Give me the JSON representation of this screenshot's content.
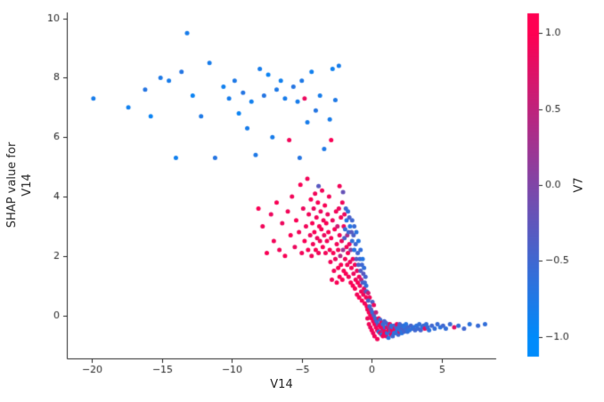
{
  "figure": {
    "xlabel": "V14",
    "ylabel_line1": "SHAP value for",
    "ylabel_line2": "V14",
    "colorbar_label": "V7",
    "text_color": "#262626",
    "spine_color": "#262626",
    "background_color": "#ffffff"
  },
  "chart_data": {
    "type": "scatter",
    "title": "",
    "xlabel": "V14",
    "ylabel": "SHAP value for V14",
    "xlim": [
      -21.8,
      8.9
    ],
    "ylim": [
      -1.45,
      10.2
    ],
    "grid": false,
    "x_ticks": [
      {
        "value": -20,
        "label": "−20"
      },
      {
        "value": -15,
        "label": "−15"
      },
      {
        "value": -10,
        "label": "−10"
      },
      {
        "value": -5,
        "label": "−5"
      },
      {
        "value": 0,
        "label": "0"
      },
      {
        "value": 5,
        "label": "5"
      }
    ],
    "y_ticks": [
      {
        "value": 0,
        "label": "0"
      },
      {
        "value": 2,
        "label": "2"
      },
      {
        "value": 4,
        "label": "4"
      },
      {
        "value": 6,
        "label": "6"
      },
      {
        "value": 8,
        "label": "8"
      },
      {
        "value": 10,
        "label": "10"
      }
    ],
    "colorbar": {
      "label": "V7",
      "position": "right",
      "vmin": -1.13,
      "vmax": 1.13,
      "color_low": "#008bfb",
      "color_high": "#ff0052",
      "ticks": [
        {
          "value": 1.0,
          "label": "1.0"
        },
        {
          "value": 0.5,
          "label": "0.5"
        },
        {
          "value": 0.0,
          "label": "0.0"
        },
        {
          "value": -0.5,
          "label": "−0.5"
        },
        {
          "value": -1.0,
          "label": "−1.0"
        }
      ]
    },
    "points": [
      [
        -19.9,
        7.3,
        -0.8
      ],
      [
        -17.4,
        7.0,
        -0.85
      ],
      [
        -16.2,
        7.6,
        -0.7
      ],
      [
        -15.8,
        6.7,
        -0.9
      ],
      [
        -15.1,
        8.0,
        -0.75
      ],
      [
        -14.5,
        7.9,
        -0.8
      ],
      [
        -14.0,
        5.3,
        -0.85
      ],
      [
        -13.6,
        8.2,
        -0.7
      ],
      [
        -13.2,
        9.5,
        -0.8
      ],
      [
        -12.8,
        7.4,
        -0.9
      ],
      [
        -12.2,
        6.7,
        -0.75
      ],
      [
        -11.6,
        8.5,
        -0.8
      ],
      [
        -11.2,
        5.3,
        -0.7
      ],
      [
        -10.6,
        7.7,
        -0.85
      ],
      [
        -10.2,
        7.3,
        -0.8
      ],
      [
        -9.8,
        7.9,
        -0.75
      ],
      [
        -9.5,
        6.8,
        -0.9
      ],
      [
        -9.2,
        7.5,
        -0.7
      ],
      [
        -8.9,
        6.3,
        -0.8
      ],
      [
        -8.6,
        7.2,
        -0.85
      ],
      [
        -8.3,
        5.4,
        -0.75
      ],
      [
        -8.0,
        8.3,
        -0.8
      ],
      [
        -7.7,
        7.4,
        -0.7
      ],
      [
        -7.4,
        8.1,
        -0.9
      ],
      [
        -7.1,
        6.0,
        -0.8
      ],
      [
        -6.8,
        7.6,
        -0.75
      ],
      [
        -6.5,
        7.9,
        -0.85
      ],
      [
        -6.2,
        7.3,
        -0.8
      ],
      [
        -5.9,
        5.9,
        0.9
      ],
      [
        -5.6,
        7.7,
        -0.7
      ],
      [
        -5.3,
        7.2,
        -0.8
      ],
      [
        -5.15,
        5.3,
        -0.7
      ],
      [
        -5.0,
        7.9,
        -0.75
      ],
      [
        -4.8,
        7.3,
        0.85
      ],
      [
        -4.6,
        6.5,
        -0.8
      ],
      [
        -4.3,
        8.2,
        -0.85
      ],
      [
        -4.0,
        6.9,
        -0.7
      ],
      [
        -3.7,
        7.4,
        -0.8
      ],
      [
        -3.4,
        5.6,
        -0.75
      ],
      [
        -3.0,
        6.6,
        -0.8
      ],
      [
        -2.9,
        5.9,
        0.95
      ],
      [
        -2.8,
        8.3,
        -0.85
      ],
      [
        -2.35,
        8.4,
        -0.8
      ],
      [
        -2.6,
        7.25,
        -0.75
      ],
      [
        -8.1,
        3.6,
        0.95
      ],
      [
        -7.8,
        3.0,
        0.9
      ],
      [
        -7.5,
        2.1,
        0.95
      ],
      [
        -7.2,
        3.4,
        0.85
      ],
      [
        -7.0,
        2.5,
        0.9
      ],
      [
        -6.8,
        3.8,
        0.95
      ],
      [
        -6.6,
        2.2,
        0.9
      ],
      [
        -6.4,
        3.1,
        0.85
      ],
      [
        -6.2,
        2.0,
        0.95
      ],
      [
        -6.0,
        3.5,
        0.9
      ],
      [
        -5.8,
        2.7,
        0.95
      ],
      [
        -5.7,
        4.0,
        0.9
      ],
      [
        -5.5,
        2.3,
        0.85
      ],
      [
        -5.4,
        3.2,
        0.95
      ],
      [
        -5.2,
        2.8,
        0.9
      ],
      [
        -5.1,
        4.4,
        0.95
      ],
      [
        -5.0,
        2.1,
        0.9
      ],
      [
        -4.9,
        3.6,
        0.85
      ],
      [
        -4.8,
        2.5,
        0.95
      ],
      [
        -4.7,
        3.0,
        0.9
      ],
      [
        -4.6,
        4.6,
        0.9
      ],
      [
        -4.55,
        2.2,
        0.95
      ],
      [
        -4.5,
        3.4,
        0.9
      ],
      [
        -4.4,
        2.7,
        0.85
      ],
      [
        -4.35,
        3.9,
        0.95
      ],
      [
        -4.3,
        2.0,
        0.9
      ],
      [
        -4.25,
        3.1,
        0.95
      ],
      [
        -4.2,
        2.4,
        0.9
      ],
      [
        -4.15,
        3.6,
        0.85
      ],
      [
        -4.1,
        2.8,
        0.95
      ],
      [
        -4.05,
        4.1,
        0.9
      ],
      [
        -4.0,
        2.2,
        0.95
      ],
      [
        -3.95,
        3.3,
        0.9
      ],
      [
        -3.9,
        2.6,
        0.85
      ],
      [
        -3.85,
        3.8,
        0.95
      ],
      [
        -3.8,
        4.35,
        -0.3
      ],
      [
        -3.8,
        2.1,
        0.9
      ],
      [
        -3.75,
        3.0,
        0.95
      ],
      [
        -3.7,
        2.5,
        0.9
      ],
      [
        -3.65,
        3.5,
        0.85
      ],
      [
        -3.6,
        2.9,
        0.95
      ],
      [
        -3.55,
        4.2,
        0.9
      ],
      [
        -3.5,
        2.3,
        0.95
      ],
      [
        -3.45,
        3.2,
        0.9
      ],
      [
        -3.4,
        2.7,
        0.85
      ],
      [
        -3.35,
        3.7,
        0.95
      ],
      [
        -3.3,
        2.1,
        0.9
      ],
      [
        -3.25,
        3.1,
        0.95
      ],
      [
        -3.2,
        2.5,
        0.9
      ],
      [
        -3.15,
        3.4,
        0.85
      ],
      [
        -3.1,
        2.8,
        0.95
      ],
      [
        -3.05,
        4.0,
        0.9
      ],
      [
        -3.0,
        2.2,
        0.95
      ],
      [
        -2.3,
        4.35,
        0.9
      ],
      [
        -2.05,
        4.15,
        -0.2
      ],
      [
        -2.95,
        1.8,
        0.9
      ],
      [
        -2.9,
        2.6,
        0.95
      ],
      [
        -2.85,
        1.2,
        0.9
      ],
      [
        -2.8,
        3.2,
        0.85
      ],
      [
        -2.75,
        2.1,
        0.95
      ],
      [
        -2.7,
        1.5,
        0.9
      ],
      [
        -2.65,
        2.9,
        0.95
      ],
      [
        -2.6,
        1.9,
        0.85
      ],
      [
        -2.55,
        3.5,
        0.9
      ],
      [
        -2.5,
        1.1,
        0.95
      ],
      [
        -2.5,
        2.4,
        0.9
      ],
      [
        -2.45,
        3.0,
        0.6
      ],
      [
        -2.4,
        1.6,
        0.95
      ],
      [
        -2.4,
        2.2,
        0.9
      ],
      [
        -2.35,
        3.6,
        0.85
      ],
      [
        -2.3,
        1.3,
        0.95
      ],
      [
        -2.3,
        2.7,
        0.9
      ],
      [
        -2.25,
        2.0,
        0.4
      ],
      [
        -2.2,
        3.3,
        0.9
      ],
      [
        -2.2,
        1.7,
        0.95
      ],
      [
        -2.15,
        2.5,
        0.85
      ],
      [
        -2.1,
        3.8,
        0.9
      ],
      [
        -2.1,
        1.2,
        0.95
      ],
      [
        -2.05,
        2.2,
        0.2
      ],
      [
        -2.0,
        3.0,
        0.9
      ],
      [
        -2.0,
        1.5,
        0.95
      ],
      [
        -1.95,
        2.6,
        -0.4
      ],
      [
        -1.95,
        3.4,
        0.85
      ],
      [
        -1.9,
        1.9,
        0.9
      ],
      [
        -1.9,
        2.9,
        -0.6
      ],
      [
        -1.85,
        3.6,
        -0.5
      ],
      [
        -1.85,
        1.4,
        0.95
      ],
      [
        -1.8,
        2.3,
        0.9
      ],
      [
        -1.8,
        3.2,
        -0.7
      ],
      [
        -1.75,
        2.7,
        0.3
      ],
      [
        -1.75,
        1.7,
        0.9
      ],
      [
        -1.7,
        3.5,
        -0.6
      ],
      [
        -1.7,
        2.1,
        0.95
      ],
      [
        -1.65,
        2.8,
        -0.5
      ],
      [
        -1.65,
        1.3,
        0.9
      ],
      [
        -1.6,
        3.3,
        -0.4
      ],
      [
        -1.6,
        2.4,
        0.85
      ],
      [
        -1.55,
        1.8,
        0.9
      ],
      [
        -1.55,
        3.0,
        -0.7
      ],
      [
        -1.5,
        2.2,
        0.1
      ],
      [
        -1.5,
        1.1,
        0.95
      ],
      [
        -1.45,
        2.8,
        -0.3
      ],
      [
        -1.45,
        1.6,
        0.9
      ],
      [
        -1.4,
        2.5,
        -0.6
      ],
      [
        -1.4,
        3.2,
        -0.5
      ],
      [
        -1.35,
        1.9,
        0.9
      ],
      [
        -1.35,
        1.0,
        0.95
      ],
      [
        -1.3,
        2.7,
        -0.4
      ],
      [
        -1.3,
        1.4,
        0.85
      ],
      [
        -1.25,
        2.2,
        -0.7
      ],
      [
        -1.25,
        3.0,
        -0.55
      ],
      [
        -1.2,
        1.7,
        0.9
      ],
      [
        -1.2,
        0.9,
        0.95
      ],
      [
        -1.15,
        2.4,
        -0.5
      ],
      [
        -1.15,
        1.2,
        0.9
      ],
      [
        -1.1,
        1.9,
        -0.3
      ],
      [
        -1.1,
        2.8,
        -0.65
      ],
      [
        -1.05,
        1.5,
        0.85
      ],
      [
        -1.05,
        0.7,
        0.9
      ],
      [
        -1.0,
        2.1,
        -0.5
      ],
      [
        -1.0,
        1.1,
        0.95
      ],
      [
        -0.95,
        1.7,
        -0.4
      ],
      [
        -0.95,
        2.5,
        -0.7
      ],
      [
        -0.9,
        1.3,
        0.9
      ],
      [
        -0.9,
        0.6,
        0.95
      ],
      [
        -0.85,
        1.9,
        -0.55
      ],
      [
        -0.85,
        1.0,
        0.85
      ],
      [
        -0.8,
        1.5,
        -0.35
      ],
      [
        -0.8,
        2.2,
        -0.6
      ],
      [
        -0.75,
        0.8,
        0.9
      ],
      [
        -0.75,
        1.2,
        0.5
      ],
      [
        -0.7,
        1.7,
        -0.5
      ],
      [
        -0.7,
        0.5,
        0.95
      ],
      [
        -0.65,
        1.1,
        -0.4
      ],
      [
        -0.65,
        1.9,
        -0.7
      ],
      [
        -0.6,
        0.7,
        0.9
      ],
      [
        -0.6,
        1.4,
        -0.3
      ],
      [
        -0.55,
        0.9,
        0.85
      ],
      [
        -0.55,
        1.6,
        -0.6
      ],
      [
        -0.5,
        0.4,
        0.9
      ],
      [
        -0.5,
        1.1,
        -0.5
      ],
      [
        -0.45,
        0.8,
        0.3
      ],
      [
        -0.45,
        1.3,
        -0.45
      ],
      [
        -0.4,
        0.6,
        0.9
      ],
      [
        -0.4,
        1.0,
        -0.6
      ],
      [
        -0.35,
        0.3,
        0.95
      ],
      [
        -0.35,
        0.8,
        -0.4
      ],
      [
        -0.25,
        0.75,
        0.6
      ],
      [
        -0.15,
        0.6,
        0.9
      ],
      [
        0.05,
        0.45,
        -0.4
      ],
      [
        0.15,
        0.35,
        0.85
      ],
      [
        -0.3,
        0.2,
        0.9
      ],
      [
        -0.3,
        -0.1,
        0.85
      ],
      [
        -0.25,
        0.5,
        -0.4
      ],
      [
        -0.2,
        0.1,
        0.95
      ],
      [
        -0.2,
        -0.3,
        0.9
      ],
      [
        -0.15,
        0.3,
        -0.5
      ],
      [
        -0.1,
        0.0,
        0.9
      ],
      [
        -0.1,
        -0.4,
        0.85
      ],
      [
        -0.05,
        0.2,
        -0.3
      ],
      [
        0.0,
        -0.1,
        0.95
      ],
      [
        0.0,
        -0.5,
        0.9
      ],
      [
        0.05,
        0.1,
        -0.6
      ],
      [
        0.1,
        -0.2,
        0.9
      ],
      [
        0.1,
        -0.6,
        0.85
      ],
      [
        0.15,
        0.0,
        -0.4
      ],
      [
        0.2,
        -0.3,
        0.95
      ],
      [
        0.2,
        -0.7,
        0.9
      ],
      [
        0.25,
        -0.1,
        -0.5
      ],
      [
        0.3,
        -0.4,
        0.9
      ],
      [
        0.3,
        0.1,
        0.5
      ],
      [
        0.35,
        -0.2,
        -0.6
      ],
      [
        0.4,
        -0.5,
        0.95
      ],
      [
        0.4,
        -0.8,
        0.9
      ],
      [
        0.45,
        -0.3,
        -0.45
      ],
      [
        0.5,
        -0.1,
        0.9
      ],
      [
        0.5,
        -0.55,
        -0.7
      ],
      [
        0.55,
        -0.35,
        0.85
      ],
      [
        0.6,
        -0.6,
        0.9
      ],
      [
        0.6,
        -0.15,
        -0.5
      ],
      [
        0.65,
        -0.4,
        0.95
      ],
      [
        0.7,
        -0.65,
        -0.6
      ],
      [
        0.7,
        -0.25,
        0.9
      ],
      [
        0.75,
        -0.5,
        0.3
      ],
      [
        0.8,
        -0.3,
        -0.55
      ],
      [
        0.8,
        -0.7,
        0.9
      ],
      [
        0.85,
        -0.45,
        0.85
      ],
      [
        0.9,
        -0.2,
        -0.4
      ],
      [
        0.9,
        -0.6,
        0.95
      ],
      [
        0.95,
        -0.4,
        -0.65
      ],
      [
        1.0,
        -0.55,
        0.9
      ],
      [
        1.0,
        -0.25,
        -0.5
      ],
      [
        1.05,
        -0.7,
        0.85
      ],
      [
        1.1,
        -0.4,
        0.9
      ],
      [
        1.1,
        -0.6,
        -0.6
      ],
      [
        1.15,
        -0.3,
        -0.45
      ],
      [
        1.2,
        -0.5,
        0.9
      ],
      [
        1.2,
        -0.75,
        -0.7
      ],
      [
        1.25,
        -0.4,
        0.2
      ],
      [
        1.3,
        -0.6,
        -0.55
      ],
      [
        1.3,
        -0.3,
        0.9
      ],
      [
        1.35,
        -0.5,
        -0.4
      ],
      [
        1.4,
        -0.65,
        0.85
      ],
      [
        1.4,
        -0.35,
        -0.6
      ],
      [
        1.45,
        -0.5,
        0.9
      ],
      [
        1.5,
        -0.7,
        -0.5
      ],
      [
        1.5,
        -0.4,
        -0.65
      ],
      [
        1.55,
        -0.55,
        0.9
      ],
      [
        1.6,
        -0.35,
        -0.45
      ],
      [
        1.6,
        -0.6,
        -0.7
      ],
      [
        1.65,
        -0.45,
        0.85
      ],
      [
        1.7,
        -0.6,
        -0.55
      ],
      [
        1.75,
        -0.4,
        -0.35
      ],
      [
        1.8,
        -0.55,
        -0.6
      ],
      [
        1.8,
        -0.3,
        0.9
      ],
      [
        1.85,
        -0.5,
        -0.7
      ],
      [
        1.9,
        -0.65,
        -0.5
      ],
      [
        1.95,
        -0.4,
        -0.6
      ],
      [
        2.0,
        -0.55,
        0.85
      ],
      [
        2.0,
        -0.3,
        -0.45
      ],
      [
        2.05,
        -0.5,
        -0.65
      ],
      [
        2.1,
        -0.4,
        -0.55
      ],
      [
        2.15,
        -0.6,
        -0.7
      ],
      [
        2.2,
        -0.45,
        -0.4
      ],
      [
        2.25,
        -0.35,
        -0.6
      ],
      [
        2.3,
        -0.55,
        -0.5
      ],
      [
        2.35,
        -0.4,
        -0.65
      ],
      [
        2.4,
        -0.5,
        -0.45
      ],
      [
        2.45,
        -0.3,
        -0.7
      ],
      [
        2.5,
        -0.45,
        -0.55
      ],
      [
        2.55,
        -0.55,
        -0.6
      ],
      [
        2.6,
        -0.4,
        -0.5
      ],
      [
        2.7,
        -0.5,
        -0.65
      ],
      [
        2.8,
        -0.35,
        -0.45
      ],
      [
        2.9,
        -0.45,
        -0.6
      ],
      [
        3.0,
        -0.4,
        -0.6
      ],
      [
        3.1,
        -0.5,
        -0.5
      ],
      [
        3.2,
        -0.35,
        -0.65
      ],
      [
        3.3,
        -0.45,
        -0.55
      ],
      [
        3.4,
        -0.3,
        -0.6
      ],
      [
        3.5,
        -0.5,
        -0.45
      ],
      [
        3.6,
        -0.4,
        -0.7
      ],
      [
        3.7,
        -0.35,
        -0.5
      ],
      [
        3.8,
        -0.45,
        0.8
      ],
      [
        3.9,
        -0.3,
        -0.6
      ],
      [
        4.0,
        -0.4,
        -0.55
      ],
      [
        4.1,
        -0.5,
        -0.65
      ],
      [
        4.3,
        -0.35,
        -0.5
      ],
      [
        4.5,
        -0.45,
        -0.6
      ],
      [
        4.7,
        -0.3,
        -0.55
      ],
      [
        4.9,
        -0.4,
        -0.65
      ],
      [
        5.1,
        -0.35,
        -0.5
      ],
      [
        5.3,
        -0.45,
        -0.6
      ],
      [
        5.6,
        -0.3,
        -0.55
      ],
      [
        5.9,
        -0.4,
        0.75
      ],
      [
        6.2,
        -0.35,
        -0.6
      ],
      [
        6.6,
        -0.45,
        -0.5
      ],
      [
        7.0,
        -0.3,
        -0.65
      ],
      [
        7.6,
        -0.35,
        -0.55
      ],
      [
        8.1,
        -0.3,
        -0.6
      ]
    ]
  }
}
